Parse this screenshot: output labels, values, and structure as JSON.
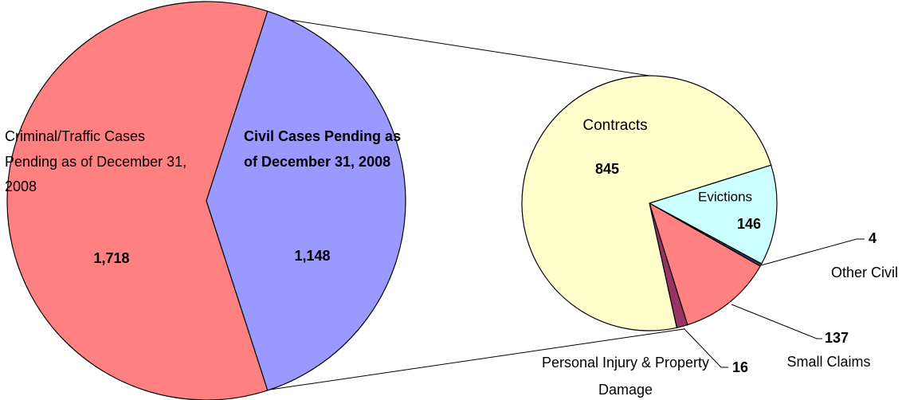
{
  "chart_data": [
    {
      "type": "pie",
      "categories": [
        "Criminal/Traffic Cases Pending as of December 31, 2008",
        "Civil Cases Pending as of December 31, 2008"
      ],
      "values": [
        1718,
        1148
      ],
      "value_labels": [
        "1,718",
        "1,148"
      ],
      "colors": [
        "#ff8080",
        "#9999ff"
      ]
    },
    {
      "type": "pie",
      "categories": [
        "Evictions",
        "Other Civil",
        "Small Claims",
        "Personal Injury & Property Damage",
        "Contracts"
      ],
      "values": [
        146,
        4,
        137,
        16,
        845
      ],
      "colors": [
        "#ccffff",
        "#333366",
        "#ff8080",
        "#993366",
        "#ffffcc"
      ]
    }
  ]
}
